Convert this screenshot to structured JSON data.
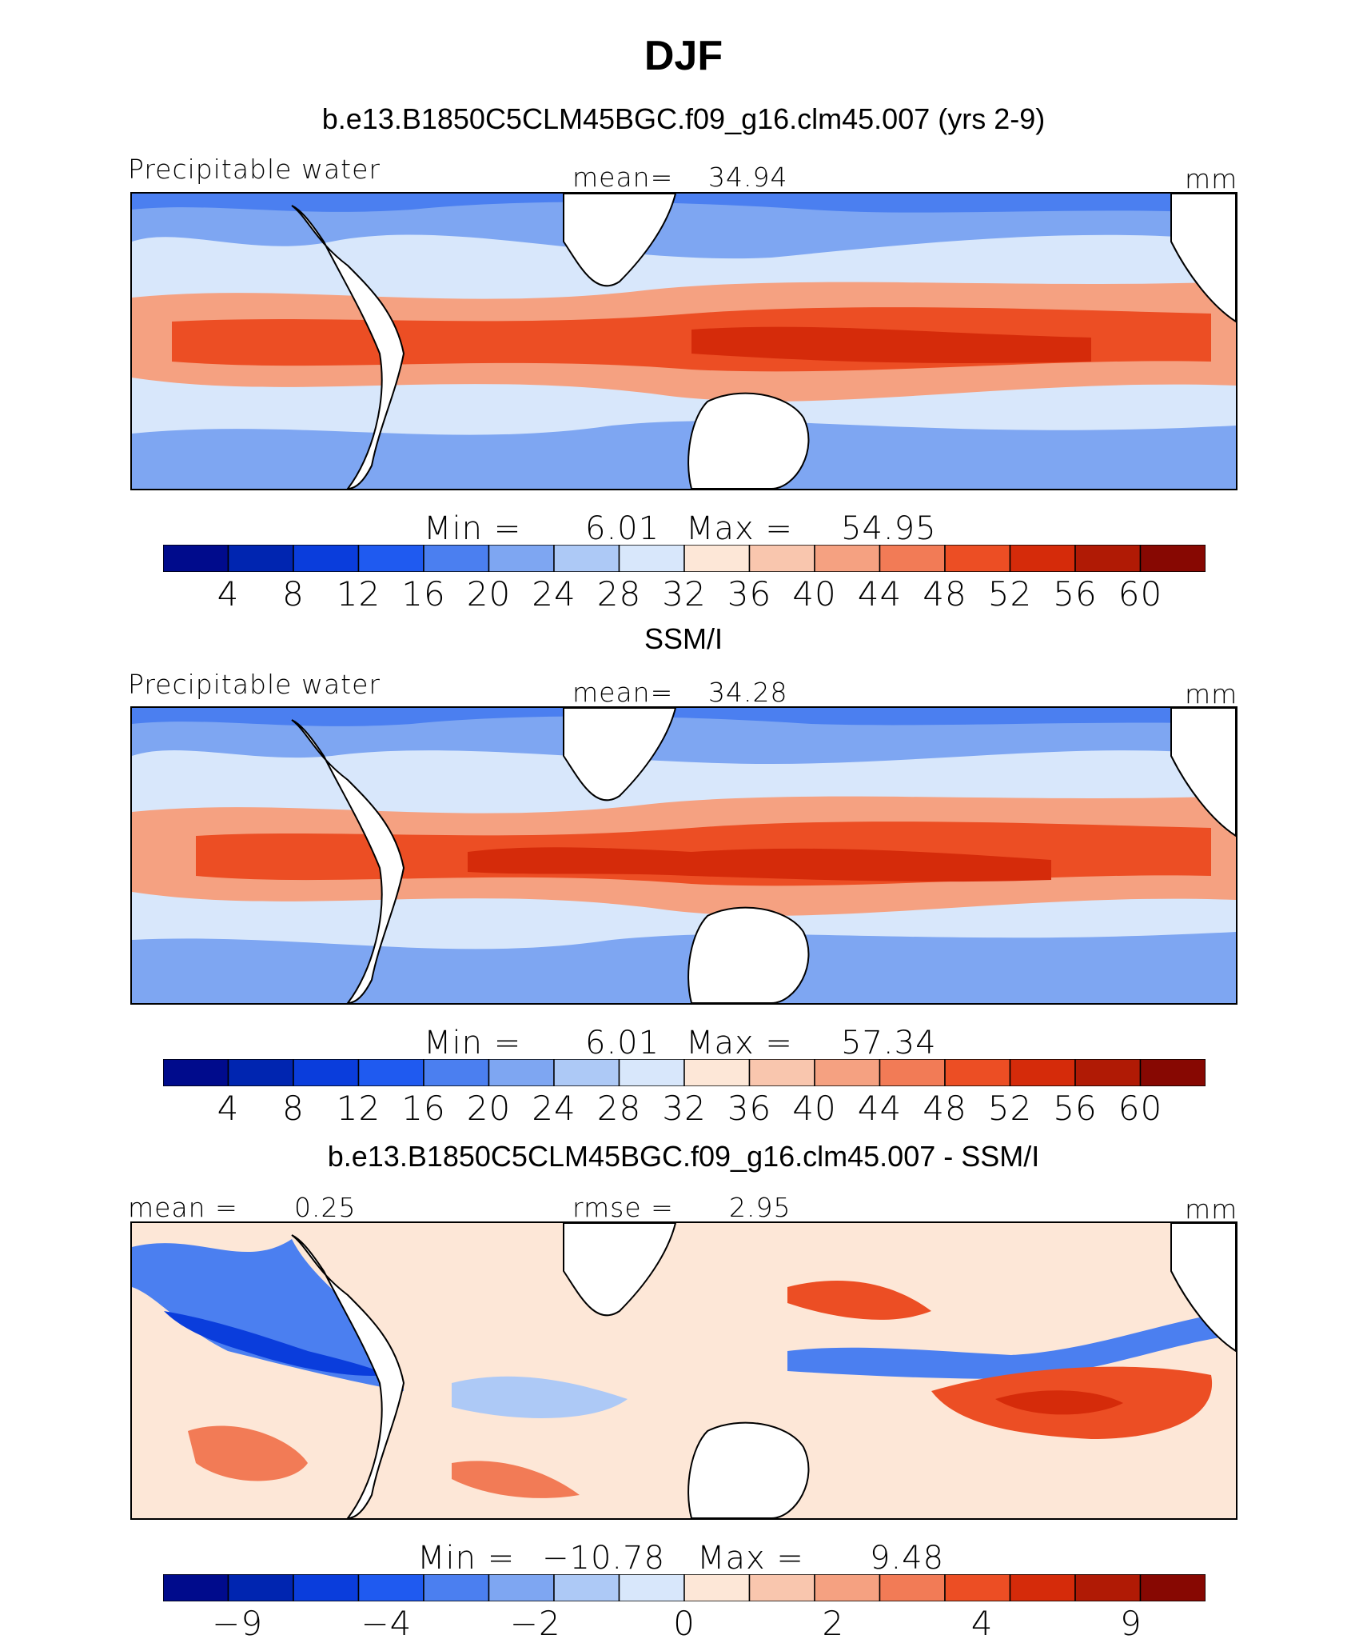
{
  "title": "DJF",
  "colors": {
    "abs_scale": [
      "#000b8c",
      "#0025b0",
      "#0a3ddc",
      "#1f5af0",
      "#4b7ff0",
      "#7ea6f2",
      "#adc9f6",
      "#d8e7fb",
      "#fde7d7",
      "#f9c6ae",
      "#f5a181",
      "#f27b56",
      "#ec4e24",
      "#d52b0a",
      "#b01a05",
      "#870802"
    ],
    "diff_scale": [
      "#000b8c",
      "#0025b0",
      "#0a3ddc",
      "#1f5af0",
      "#4b7ff0",
      "#7ea6f2",
      "#adc9f6",
      "#d8e7fb",
      "#fde7d7",
      "#f9c6ae",
      "#f5a181",
      "#f27b56",
      "#ec4e24",
      "#d52b0a",
      "#b01a05",
      "#870802"
    ],
    "land": "#ffffff",
    "coast": "#000000"
  },
  "chart_data": [
    {
      "type": "heatmap",
      "title": "b.e13.B1850C5CLM45BGC.f09_g16.clm45.007 (yrs 2-9)",
      "variable_label": "Precipitable water",
      "stat_label": "mean=",
      "stat_value": "34.94",
      "units": "mm",
      "min_label": "Min =",
      "min_value": "6.01",
      "max_label": "Max =",
      "max_value": "54.95",
      "colorbar_ticks": [
        "4",
        "8",
        "12",
        "16",
        "20",
        "24",
        "28",
        "32",
        "36",
        "40",
        "44",
        "48",
        "52",
        "56",
        "60"
      ]
    },
    {
      "type": "heatmap",
      "title": "SSM/I",
      "variable_label": "Precipitable water",
      "stat_label": "mean=",
      "stat_value": "34.28",
      "units": "mm",
      "min_label": "Min =",
      "min_value": "6.01",
      "max_label": "Max =",
      "max_value": "57.34",
      "colorbar_ticks": [
        "4",
        "8",
        "12",
        "16",
        "20",
        "24",
        "28",
        "32",
        "36",
        "40",
        "44",
        "48",
        "52",
        "56",
        "60"
      ]
    },
    {
      "type": "heatmap",
      "title": "b.e13.B1850C5CLM45BGC.f09_g16.clm45.007 - SSM/I",
      "mean_label": "mean =",
      "mean_value": "0.25",
      "rmse_label": "rmse =",
      "rmse_value": "2.95",
      "units": "mm",
      "min_label": "Min =",
      "min_value": "−10.78",
      "max_label": "Max =",
      "max_value": "9.48",
      "colorbar_ticks": [
        "−9",
        "",
        "−4",
        "",
        "−2",
        "",
        "0",
        "",
        "2",
        "",
        "4",
        "",
        "9"
      ]
    }
  ]
}
